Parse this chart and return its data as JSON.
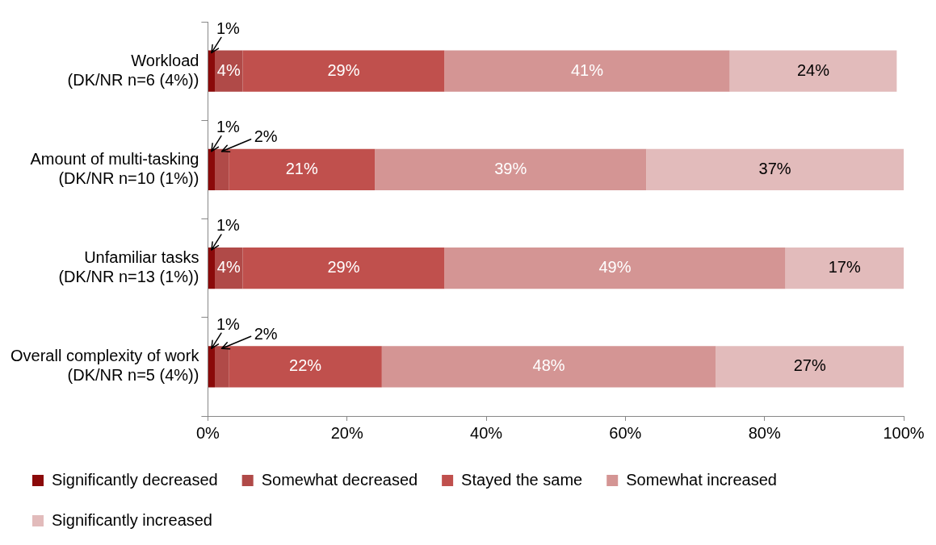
{
  "chart_data": {
    "type": "bar",
    "orientation": "horizontal",
    "stacked": true,
    "categories": [
      "Workload\n(DK/NR n=6 (4%))",
      "Amount of multi-tasking\n(DK/NR n=10 (1%))",
      "Unfamiliar tasks\n(DK/NR n=13 (1%))",
      "Overall complexity of work\n(DK/NR n=5 (4%))"
    ],
    "series": [
      {
        "name": "Significantly decreased",
        "color": "#8b0a0a",
        "values": [
          1,
          1,
          1,
          1
        ],
        "value_labels": [
          "1%",
          "1%",
          "1%",
          "1%"
        ]
      },
      {
        "name": "Somewhat decreased",
        "color": "#b04a48",
        "values": [
          4,
          2,
          4,
          2
        ],
        "value_labels": [
          "4%",
          "2%",
          "4%",
          "2%"
        ]
      },
      {
        "name": "Stayed the same",
        "color": "#c0504d",
        "values": [
          29,
          21,
          29,
          22
        ],
        "value_labels": [
          "29%",
          "21%",
          "29%",
          "22%"
        ]
      },
      {
        "name": "Somewhat increased",
        "color": "#d49594",
        "values": [
          41,
          39,
          49,
          48
        ],
        "value_labels": [
          "41%",
          "39%",
          "49%",
          "48%"
        ]
      },
      {
        "name": "Significantly increased",
        "color": "#e2bbbb",
        "values": [
          24,
          37,
          17,
          27
        ],
        "value_labels": [
          "24%",
          "37%",
          "17%",
          "27%"
        ]
      }
    ],
    "xlim": [
      0,
      100
    ],
    "xticks": [
      {
        "value": 0,
        "label": "0%"
      },
      {
        "value": 20,
        "label": "20%"
      },
      {
        "value": 40,
        "label": "40%"
      },
      {
        "value": 60,
        "label": "60%"
      },
      {
        "value": 80,
        "label": "80%"
      },
      {
        "value": 100,
        "label": "100%"
      }
    ],
    "grid": false,
    "legend": "bottom"
  }
}
